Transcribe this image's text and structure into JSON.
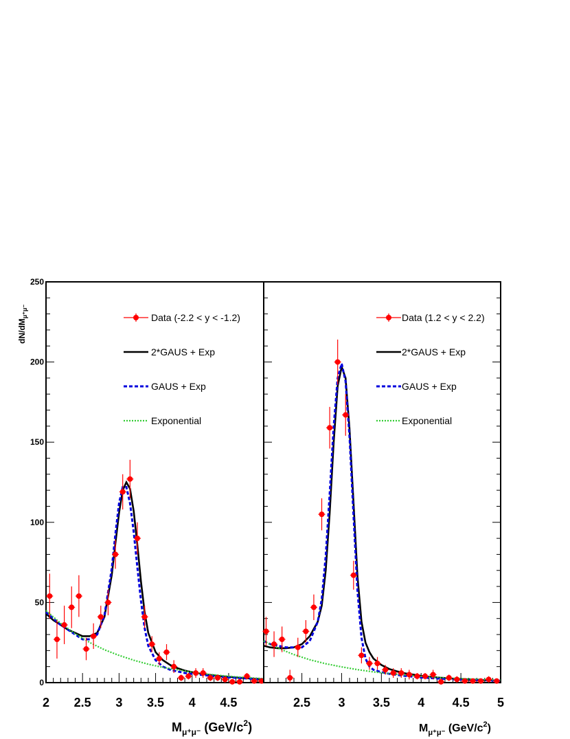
{
  "chart_data": [
    {
      "type": "scatter",
      "panel": "left",
      "xlim": [
        2.0,
        4.98
      ],
      "ylim": [
        0,
        250
      ],
      "x_ticks": [
        2,
        2.5,
        3,
        3.5,
        4,
        4.5
      ],
      "x_tick_labels": [
        "2",
        "2.5",
        "3",
        "3.5",
        "4",
        "4.5"
      ],
      "y_ticks": [
        0,
        50,
        100,
        150,
        200,
        250
      ],
      "y_tick_labels": [
        "0",
        "50",
        "100",
        "150",
        "200",
        "250"
      ],
      "ylabel": "dN/dM",
      "ylabel_sub": "μ⁺μ⁻",
      "xlabel": "M",
      "xlabel_sub": "μ⁺μ⁻",
      "xlabel_unit": " (GeV/c",
      "xlabel_sup": "2",
      "xlabel_close": ")",
      "legend": [
        {
          "label": "Data (-2.2 < y < -1.2)",
          "style": "data",
          "color": "#ff0000"
        },
        {
          "label": "2*GAUS + Exp",
          "style": "solid",
          "color": "#000000"
        },
        {
          "label": "GAUS + Exp",
          "style": "dashed",
          "color": "#0000dd"
        },
        {
          "label": "Exponential",
          "style": "dotted",
          "color": "#33cc33"
        }
      ],
      "series": [
        {
          "name": "Data (-2.2 < y < -1.2)",
          "kind": "points_with_errors",
          "color": "#ff0000",
          "x": [
            2.05,
            2.15,
            2.25,
            2.35,
            2.45,
            2.55,
            2.65,
            2.75,
            2.85,
            2.95,
            3.05,
            3.15,
            3.25,
            3.35,
            3.45,
            3.55,
            3.65,
            3.75,
            3.85,
            3.95,
            4.05,
            4.15,
            4.25,
            4.35,
            4.45,
            4.55,
            4.65,
            4.75,
            4.85,
            4.95
          ],
          "y": [
            54,
            27,
            36,
            47,
            54,
            21,
            29,
            41,
            50,
            80,
            119,
            127,
            90,
            41,
            24,
            15,
            19,
            10,
            3,
            4,
            6,
            6,
            3,
            3,
            2,
            0.5,
            0.5,
            4,
            1,
            1
          ],
          "yerr": [
            14,
            12,
            12,
            13,
            13,
            7,
            8,
            7,
            8,
            9,
            11,
            12,
            10,
            7,
            5,
            4,
            5,
            4,
            2,
            2,
            3,
            3,
            2,
            2,
            2,
            1,
            1,
            2,
            1,
            1
          ]
        },
        {
          "name": "2*GAUS + Exp",
          "kind": "curve",
          "color": "#000000",
          "x": [
            2.0,
            2.1,
            2.2,
            2.3,
            2.4,
            2.5,
            2.6,
            2.7,
            2.8,
            2.9,
            2.95,
            3.0,
            3.05,
            3.1,
            3.15,
            3.2,
            3.25,
            3.3,
            3.35,
            3.4,
            3.5,
            3.6,
            3.7,
            3.8,
            3.9,
            4.0,
            4.2,
            4.4,
            4.6,
            4.8,
            4.98
          ],
          "y": [
            43,
            39,
            36,
            33,
            31,
            29,
            29,
            31,
            41,
            67,
            87,
            106,
            120,
            125,
            121,
            107,
            86,
            63,
            44,
            31,
            19,
            14,
            11,
            9,
            7.5,
            6.5,
            5,
            4,
            3.2,
            2.6,
            2
          ]
        },
        {
          "name": "GAUS + Exp",
          "kind": "curve",
          "color": "#0000dd",
          "x": [
            2.0,
            2.1,
            2.2,
            2.3,
            2.4,
            2.5,
            2.6,
            2.7,
            2.8,
            2.9,
            2.95,
            3.0,
            3.05,
            3.1,
            3.15,
            3.2,
            3.25,
            3.3,
            3.35,
            3.4,
            3.5,
            3.6,
            3.7,
            3.8,
            3.9,
            4.0,
            4.2,
            4.4,
            4.6,
            4.8,
            4.98
          ],
          "y": [
            44,
            40,
            36,
            33,
            30,
            27,
            27,
            30,
            42,
            71,
            93,
            112,
            122,
            122,
            112,
            94,
            72,
            51,
            34,
            23,
            14,
            10,
            8,
            7,
            6,
            5.5,
            4.5,
            3.6,
            3,
            2.5,
            2
          ]
        },
        {
          "name": "Exponential",
          "kind": "curve",
          "color": "#33cc33",
          "x": [
            2.0,
            2.2,
            2.4,
            2.6,
            2.8,
            3.0,
            3.2,
            3.4,
            3.6,
            3.8,
            4.0,
            4.2,
            4.4,
            4.6,
            4.8,
            4.98
          ],
          "y": [
            45,
            37,
            30.5,
            25,
            20.5,
            17,
            14,
            11.5,
            9.5,
            8,
            6.5,
            5.3,
            4.4,
            3.6,
            3,
            2.5
          ]
        }
      ]
    },
    {
      "type": "scatter",
      "panel": "right",
      "xlim": [
        2.02,
        5.0
      ],
      "ylim": [
        0,
        250
      ],
      "x_ticks": [
        2.5,
        3,
        3.5,
        4,
        4.5,
        5
      ],
      "x_tick_labels": [
        "2.5",
        "3",
        "3.5",
        "4",
        "4.5",
        "5"
      ],
      "xlabel": "M",
      "xlabel_sub": "μ⁺μ⁻",
      "xlabel_unit": " (GeV/c",
      "xlabel_sup": "2",
      "xlabel_close": ")",
      "legend": [
        {
          "label": "Data (1.2 < y < 2.2)",
          "style": "data",
          "color": "#ff0000"
        },
        {
          "label": "2*GAUS + Exp",
          "style": "solid",
          "color": "#000000"
        },
        {
          "label": "GAUS + Exp",
          "style": "dashed",
          "color": "#0000dd"
        },
        {
          "label": "Exponential",
          "style": "dotted",
          "color": "#33cc33"
        }
      ],
      "series": [
        {
          "name": "Data (1.2 < y < 2.2)",
          "kind": "points_with_errors",
          "color": "#ff0000",
          "x": [
            2.05,
            2.15,
            2.25,
            2.35,
            2.45,
            2.55,
            2.65,
            2.75,
            2.85,
            2.95,
            3.05,
            3.15,
            3.25,
            3.35,
            3.45,
            3.55,
            3.65,
            3.75,
            3.85,
            3.95,
            4.05,
            4.15,
            4.25,
            4.35,
            4.45,
            4.55,
            4.65,
            4.75,
            4.85,
            4.95
          ],
          "y": [
            32,
            24,
            27,
            3,
            22,
            32,
            47,
            105,
            159,
            200,
            167,
            67,
            17,
            12,
            12,
            8,
            6,
            6,
            5,
            4,
            4,
            5,
            0.5,
            3,
            2,
            1,
            1,
            1,
            2,
            1
          ],
          "yerr": [
            9,
            8,
            8,
            5,
            6,
            7,
            8,
            10,
            13,
            14,
            13,
            9,
            5,
            4,
            4,
            3,
            3,
            3,
            3,
            2,
            2,
            3,
            2,
            2,
            2,
            1,
            1,
            1,
            2,
            1
          ]
        },
        {
          "name": "2*GAUS + Exp",
          "kind": "curve",
          "color": "#000000",
          "x": [
            2.02,
            2.1,
            2.2,
            2.3,
            2.4,
            2.5,
            2.6,
            2.7,
            2.75,
            2.8,
            2.85,
            2.9,
            2.95,
            3.0,
            3.05,
            3.1,
            3.15,
            3.2,
            3.25,
            3.3,
            3.35,
            3.4,
            3.5,
            3.6,
            3.7,
            3.8,
            3.9,
            4.0,
            4.2,
            4.4,
            4.6,
            4.8,
            5.0
          ],
          "y": [
            23,
            22,
            21.5,
            21.5,
            22,
            24,
            29,
            38,
            48,
            70,
            106,
            150,
            185,
            197,
            190,
            158,
            112,
            66,
            38,
            25,
            19,
            15,
            11,
            8.5,
            7,
            5.8,
            5,
            4.2,
            3.2,
            2.5,
            2,
            1.6,
            1.2
          ]
        },
        {
          "name": "GAUS + Exp",
          "kind": "curve",
          "color": "#0000dd",
          "x": [
            2.02,
            2.1,
            2.2,
            2.3,
            2.4,
            2.5,
            2.6,
            2.7,
            2.75,
            2.8,
            2.85,
            2.9,
            2.95,
            3.0,
            3.05,
            3.1,
            3.15,
            3.2,
            3.25,
            3.3,
            3.35,
            3.4,
            3.5,
            3.6,
            3.7,
            3.8,
            3.9,
            4.0,
            4.2,
            4.4,
            4.6,
            4.8,
            5.0
          ],
          "y": [
            26,
            24,
            23,
            22,
            22,
            22,
            26,
            38,
            52,
            79,
            118,
            160,
            190,
            199,
            188,
            153,
            104,
            57,
            28,
            15,
            10,
            8,
            6.5,
            5.5,
            4.8,
            4.2,
            3.7,
            3.2,
            2.6,
            2.1,
            1.7,
            1.4,
            1.1
          ]
        },
        {
          "name": "Exponential",
          "kind": "curve",
          "color": "#33cc33",
          "x": [
            2.02,
            2.2,
            2.4,
            2.6,
            2.8,
            3.0,
            3.2,
            3.4,
            3.6,
            3.8,
            4.0,
            4.2,
            4.4,
            4.6,
            4.8,
            5.0
          ],
          "y": [
            26,
            21.5,
            17.5,
            14.3,
            11.8,
            9.8,
            8.1,
            6.7,
            5.6,
            4.7,
            3.9,
            3.3,
            2.7,
            2.3,
            1.9,
            1.6
          ]
        }
      ]
    }
  ]
}
